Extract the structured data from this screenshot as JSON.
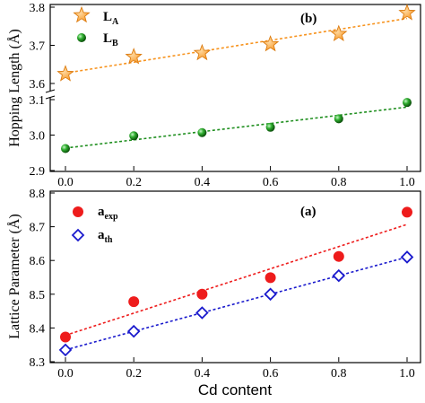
{
  "chart_data": [
    {
      "type": "scatter",
      "panel_label": "(b)",
      "title": "",
      "ylabel": "Hopping Length (Å)",
      "ylim": [
        2.9,
        3.8
      ],
      "yticks": [
        "2.9",
        "3.0",
        "3.1",
        "3.6",
        "3.7",
        "3.8"
      ],
      "xticks": [
        "0.0",
        "0.2",
        "0.4",
        "0.6",
        "0.8",
        "1.0"
      ],
      "x": [
        0.0,
        0.2,
        0.4,
        0.6,
        0.8,
        1.0
      ],
      "axis_break": true,
      "grid": false,
      "legend_position": "top-left",
      "series": [
        {
          "name": "L",
          "subscript": "A",
          "values": [
            3.625,
            3.67,
            3.68,
            3.703,
            3.73,
            3.785
          ],
          "marker": "star",
          "color": "#f7931e",
          "fit_line": true
        },
        {
          "name": "L",
          "subscript": "B",
          "values": [
            2.962,
            2.998,
            3.007,
            3.022,
            3.046,
            3.092
          ],
          "marker": "sphere",
          "color": "#1f8f1f",
          "fit_line": true
        }
      ]
    },
    {
      "type": "scatter",
      "panel_label": "(a)",
      "title": "",
      "ylabel": "Lattice Parameter (Å)",
      "xlabel": "Cd content",
      "ylim": [
        8.3,
        8.8
      ],
      "yticks": [
        "8.3",
        "8.4",
        "8.5",
        "8.6",
        "8.7",
        "8.8"
      ],
      "xticks": [
        "0.0",
        "0.2",
        "0.4",
        "0.6",
        "0.8",
        "1.0"
      ],
      "x": [
        0.0,
        0.2,
        0.4,
        0.6,
        0.8,
        1.0
      ],
      "grid": false,
      "legend_position": "top-left",
      "series": [
        {
          "name": "a",
          "subscript": "exp",
          "values": [
            8.373,
            8.478,
            8.5,
            8.549,
            8.612,
            8.743
          ],
          "marker": "filled-circle",
          "color": "#ee1c1c",
          "fit_line": true
        },
        {
          "name": "a",
          "subscript": "th",
          "values": [
            8.335,
            8.39,
            8.445,
            8.5,
            8.555,
            8.61
          ],
          "marker": "open-diamond",
          "color": "#1a1acd",
          "fit_line": true
        }
      ]
    }
  ]
}
